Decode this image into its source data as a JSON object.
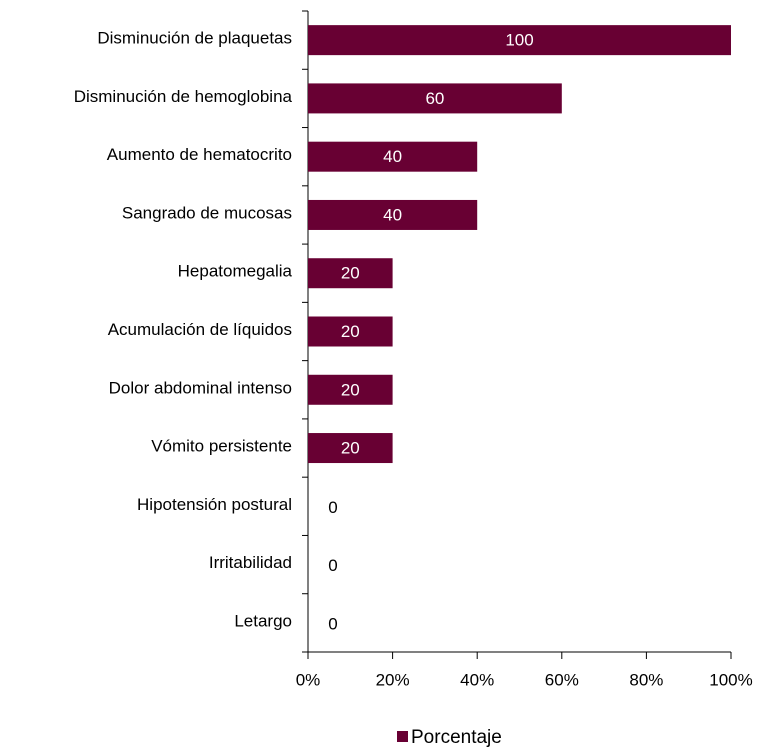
{
  "chart_data": {
    "type": "barh",
    "categories": [
      "Disminución de plaquetas",
      "Disminución de hemoglobina",
      "Aumento de hematocrito",
      "Sangrado de mucosas",
      "Hepatomegalia",
      "Acumulación de líquidos",
      "Dolor abdominal intenso",
      "Vómito persistente",
      "Hipotensión postural",
      "Irritabilidad",
      "Letargo"
    ],
    "series": [
      {
        "name": "Porcentaje",
        "color": "#680033",
        "values": [
          100,
          60,
          40,
          40,
          20,
          20,
          20,
          20,
          0,
          0,
          0
        ]
      }
    ],
    "xlim": [
      0,
      100
    ],
    "xticks": [
      {
        "value": 0,
        "label": "0%"
      },
      {
        "value": 20,
        "label": "20%"
      },
      {
        "value": 40,
        "label": "40%"
      },
      {
        "value": 60,
        "label": "60%"
      },
      {
        "value": 80,
        "label": "80%"
      },
      {
        "value": 100,
        "label": "100%"
      }
    ],
    "legend": "bottom"
  }
}
